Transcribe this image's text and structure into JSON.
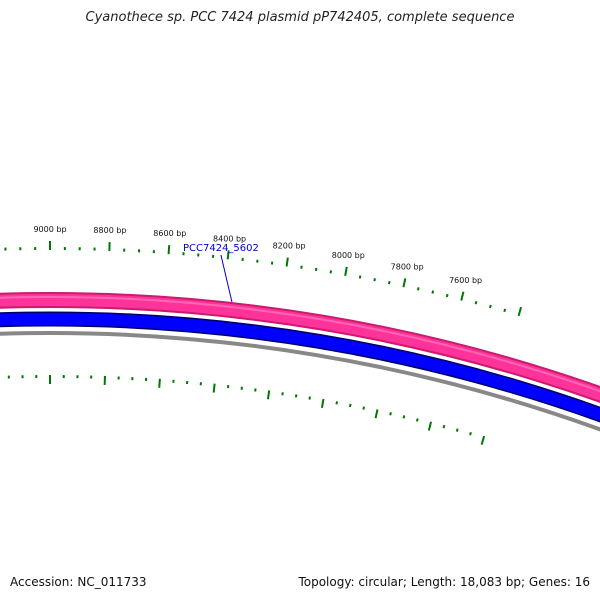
{
  "title": "Cyanothece sp. PCC 7424 plasmid pP742405, complete sequence",
  "footer": {
    "accession_label": "Accession:",
    "accession_value": "NC_011733",
    "topology_label": "Topology:",
    "topology_value": "circular",
    "length_label": "Length:",
    "length_value": "18,083 bp",
    "genes_label": "Genes:",
    "genes_value": "16"
  },
  "tick_labels": [
    {
      "text": "9000 bp",
      "bp": 9000
    },
    {
      "text": "8800 bp",
      "bp": 8800
    },
    {
      "text": "8600 bp",
      "bp": 8600
    },
    {
      "text": "8400 bp",
      "bp": 8400
    },
    {
      "text": "8200 bp",
      "bp": 8200
    },
    {
      "text": "8000 bp",
      "bp": 8000
    },
    {
      "text": "7800 bp",
      "bp": 7800
    },
    {
      "text": "7600 bp",
      "bp": 7600
    }
  ],
  "gene_labels": [
    {
      "text": "PCC7424_5602"
    }
  ],
  "colors": {
    "outer_band": "#ff3399",
    "outer_band_edge": "#cc1a6e",
    "inner_band": "#0000ff",
    "backbone": "#888888",
    "ticks": "#007700",
    "gene_label": "#0000cc"
  }
}
